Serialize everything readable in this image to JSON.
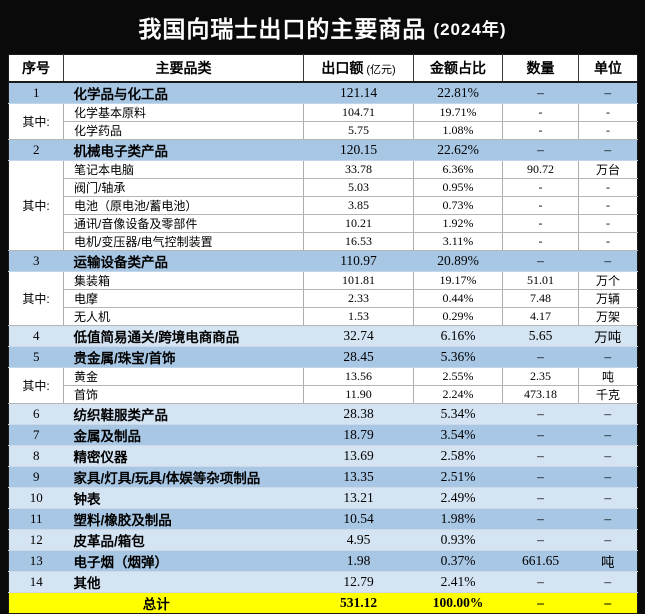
{
  "title": {
    "text": "我国向瑞士出口的主要商品",
    "year": "(2024年)"
  },
  "header": {
    "col_no": "序号",
    "col_category": "主要品类",
    "col_value": "出口额",
    "col_value_note": "(亿元)",
    "col_share": "金额占比",
    "col_qty": "数量",
    "col_unit": "单位"
  },
  "colors": {
    "title_bg": "#0a0a0a",
    "title_text": "#ffffff",
    "row_blue": "#a7c7e5",
    "row_light_blue": "#d4e4f3",
    "total_yellow": "#ffff00"
  },
  "chart_data": {
    "type": "table",
    "title": "我国向瑞士出口的主要商品 (2024年)",
    "columns": [
      "序号",
      "主要品类",
      "出口额(亿元)",
      "金额占比",
      "数量",
      "单位"
    ],
    "group_label": "其中:",
    "rows": [
      {
        "kind": "category",
        "no": "1",
        "name": "化学品与化工品",
        "value": "121.14",
        "share": "22.81%",
        "qty": "–",
        "unit": "–"
      },
      {
        "kind": "sub",
        "group": "其中:",
        "span": 2,
        "name": "化学基本原料",
        "value": "104.71",
        "share": "19.71%",
        "qty": "-",
        "unit": "-"
      },
      {
        "kind": "sub",
        "name": "化学药品",
        "value": "5.75",
        "share": "1.08%",
        "qty": "-",
        "unit": "-"
      },
      {
        "kind": "category",
        "no": "2",
        "name": "机械电子类产品",
        "value": "120.15",
        "share": "22.62%",
        "qty": "–",
        "unit": "–"
      },
      {
        "kind": "sub",
        "group": "其中:",
        "span": 5,
        "name": "笔记本电脑",
        "value": "33.78",
        "share": "6.36%",
        "qty": "90.72",
        "unit": "万台"
      },
      {
        "kind": "sub",
        "name": "阀门/轴承",
        "value": "5.03",
        "share": "0.95%",
        "qty": "-",
        "unit": "-"
      },
      {
        "kind": "sub",
        "name": "电池（原电池/蓄电池）",
        "value": "3.85",
        "share": "0.73%",
        "qty": "-",
        "unit": "-"
      },
      {
        "kind": "sub",
        "name": "通讯/音像设备及零部件",
        "value": "10.21",
        "share": "1.92%",
        "qty": "-",
        "unit": "-"
      },
      {
        "kind": "sub",
        "name": "电机/变压器/电气控制装置",
        "value": "16.53",
        "share": "3.11%",
        "qty": "-",
        "unit": "-"
      },
      {
        "kind": "category",
        "no": "3",
        "name": "运输设备类产品",
        "value": "110.97",
        "share": "20.89%",
        "qty": "–",
        "unit": "–"
      },
      {
        "kind": "sub",
        "group": "其中:",
        "span": 3,
        "name": "集装箱",
        "value": "101.81",
        "share": "19.17%",
        "qty": "51.01",
        "unit": "万个"
      },
      {
        "kind": "sub",
        "name": "电摩",
        "value": "2.33",
        "share": "0.44%",
        "qty": "7.48",
        "unit": "万辆"
      },
      {
        "kind": "sub",
        "name": "无人机",
        "value": "1.53",
        "share": "0.29%",
        "qty": "4.17",
        "unit": "万架"
      },
      {
        "kind": "simple",
        "shade": "light",
        "no": "4",
        "name": "低值简易通关/跨境电商商品",
        "value": "32.74",
        "share": "6.16%",
        "qty": "5.65",
        "unit": "万吨"
      },
      {
        "kind": "category",
        "no": "5",
        "name": "贵金属/珠宝/首饰",
        "value": "28.45",
        "share": "5.36%",
        "qty": "–",
        "unit": "–"
      },
      {
        "kind": "sub",
        "group": "其中:",
        "span": 2,
        "name": "黄金",
        "value": "13.56",
        "share": "2.55%",
        "qty": "2.35",
        "unit": "吨"
      },
      {
        "kind": "sub",
        "name": "首饰",
        "value": "11.90",
        "share": "2.24%",
        "qty": "473.18",
        "unit": "千克"
      },
      {
        "kind": "simple",
        "shade": "light",
        "no": "6",
        "name": "纺织鞋服类产品",
        "value": "28.38",
        "share": "5.34%",
        "qty": "–",
        "unit": "–"
      },
      {
        "kind": "simple",
        "shade": "dark",
        "no": "7",
        "name": "金属及制品",
        "value": "18.79",
        "share": "3.54%",
        "qty": "–",
        "unit": "–"
      },
      {
        "kind": "simple",
        "shade": "light",
        "no": "8",
        "name": "精密仪器",
        "value": "13.69",
        "share": "2.58%",
        "qty": "–",
        "unit": "–"
      },
      {
        "kind": "simple",
        "shade": "dark",
        "no": "9",
        "name": "家具/灯具/玩具/体娱等杂项制品",
        "value": "13.35",
        "share": "2.51%",
        "qty": "–",
        "unit": "–"
      },
      {
        "kind": "simple",
        "shade": "light",
        "no": "10",
        "name": "钟表",
        "value": "13.21",
        "share": "2.49%",
        "qty": "–",
        "unit": "–"
      },
      {
        "kind": "simple",
        "shade": "dark",
        "no": "11",
        "name": "塑料/橡胶及制品",
        "value": "10.54",
        "share": "1.98%",
        "qty": "–",
        "unit": "–"
      },
      {
        "kind": "simple",
        "shade": "light",
        "no": "12",
        "name": "皮革品/箱包",
        "value": "4.95",
        "share": "0.93%",
        "qty": "–",
        "unit": "–"
      },
      {
        "kind": "simple",
        "shade": "dark",
        "no": "13",
        "name": "电子烟（烟弹）",
        "value": "1.98",
        "share": "0.37%",
        "qty": "661.65",
        "unit": "吨"
      },
      {
        "kind": "simple",
        "shade": "light",
        "no": "14",
        "name": "其他",
        "value": "12.79",
        "share": "2.41%",
        "qty": "–",
        "unit": "–"
      },
      {
        "kind": "total",
        "label": "总计",
        "value": "531.12",
        "share": "100.00%",
        "qty": "–",
        "unit": "–"
      }
    ]
  }
}
